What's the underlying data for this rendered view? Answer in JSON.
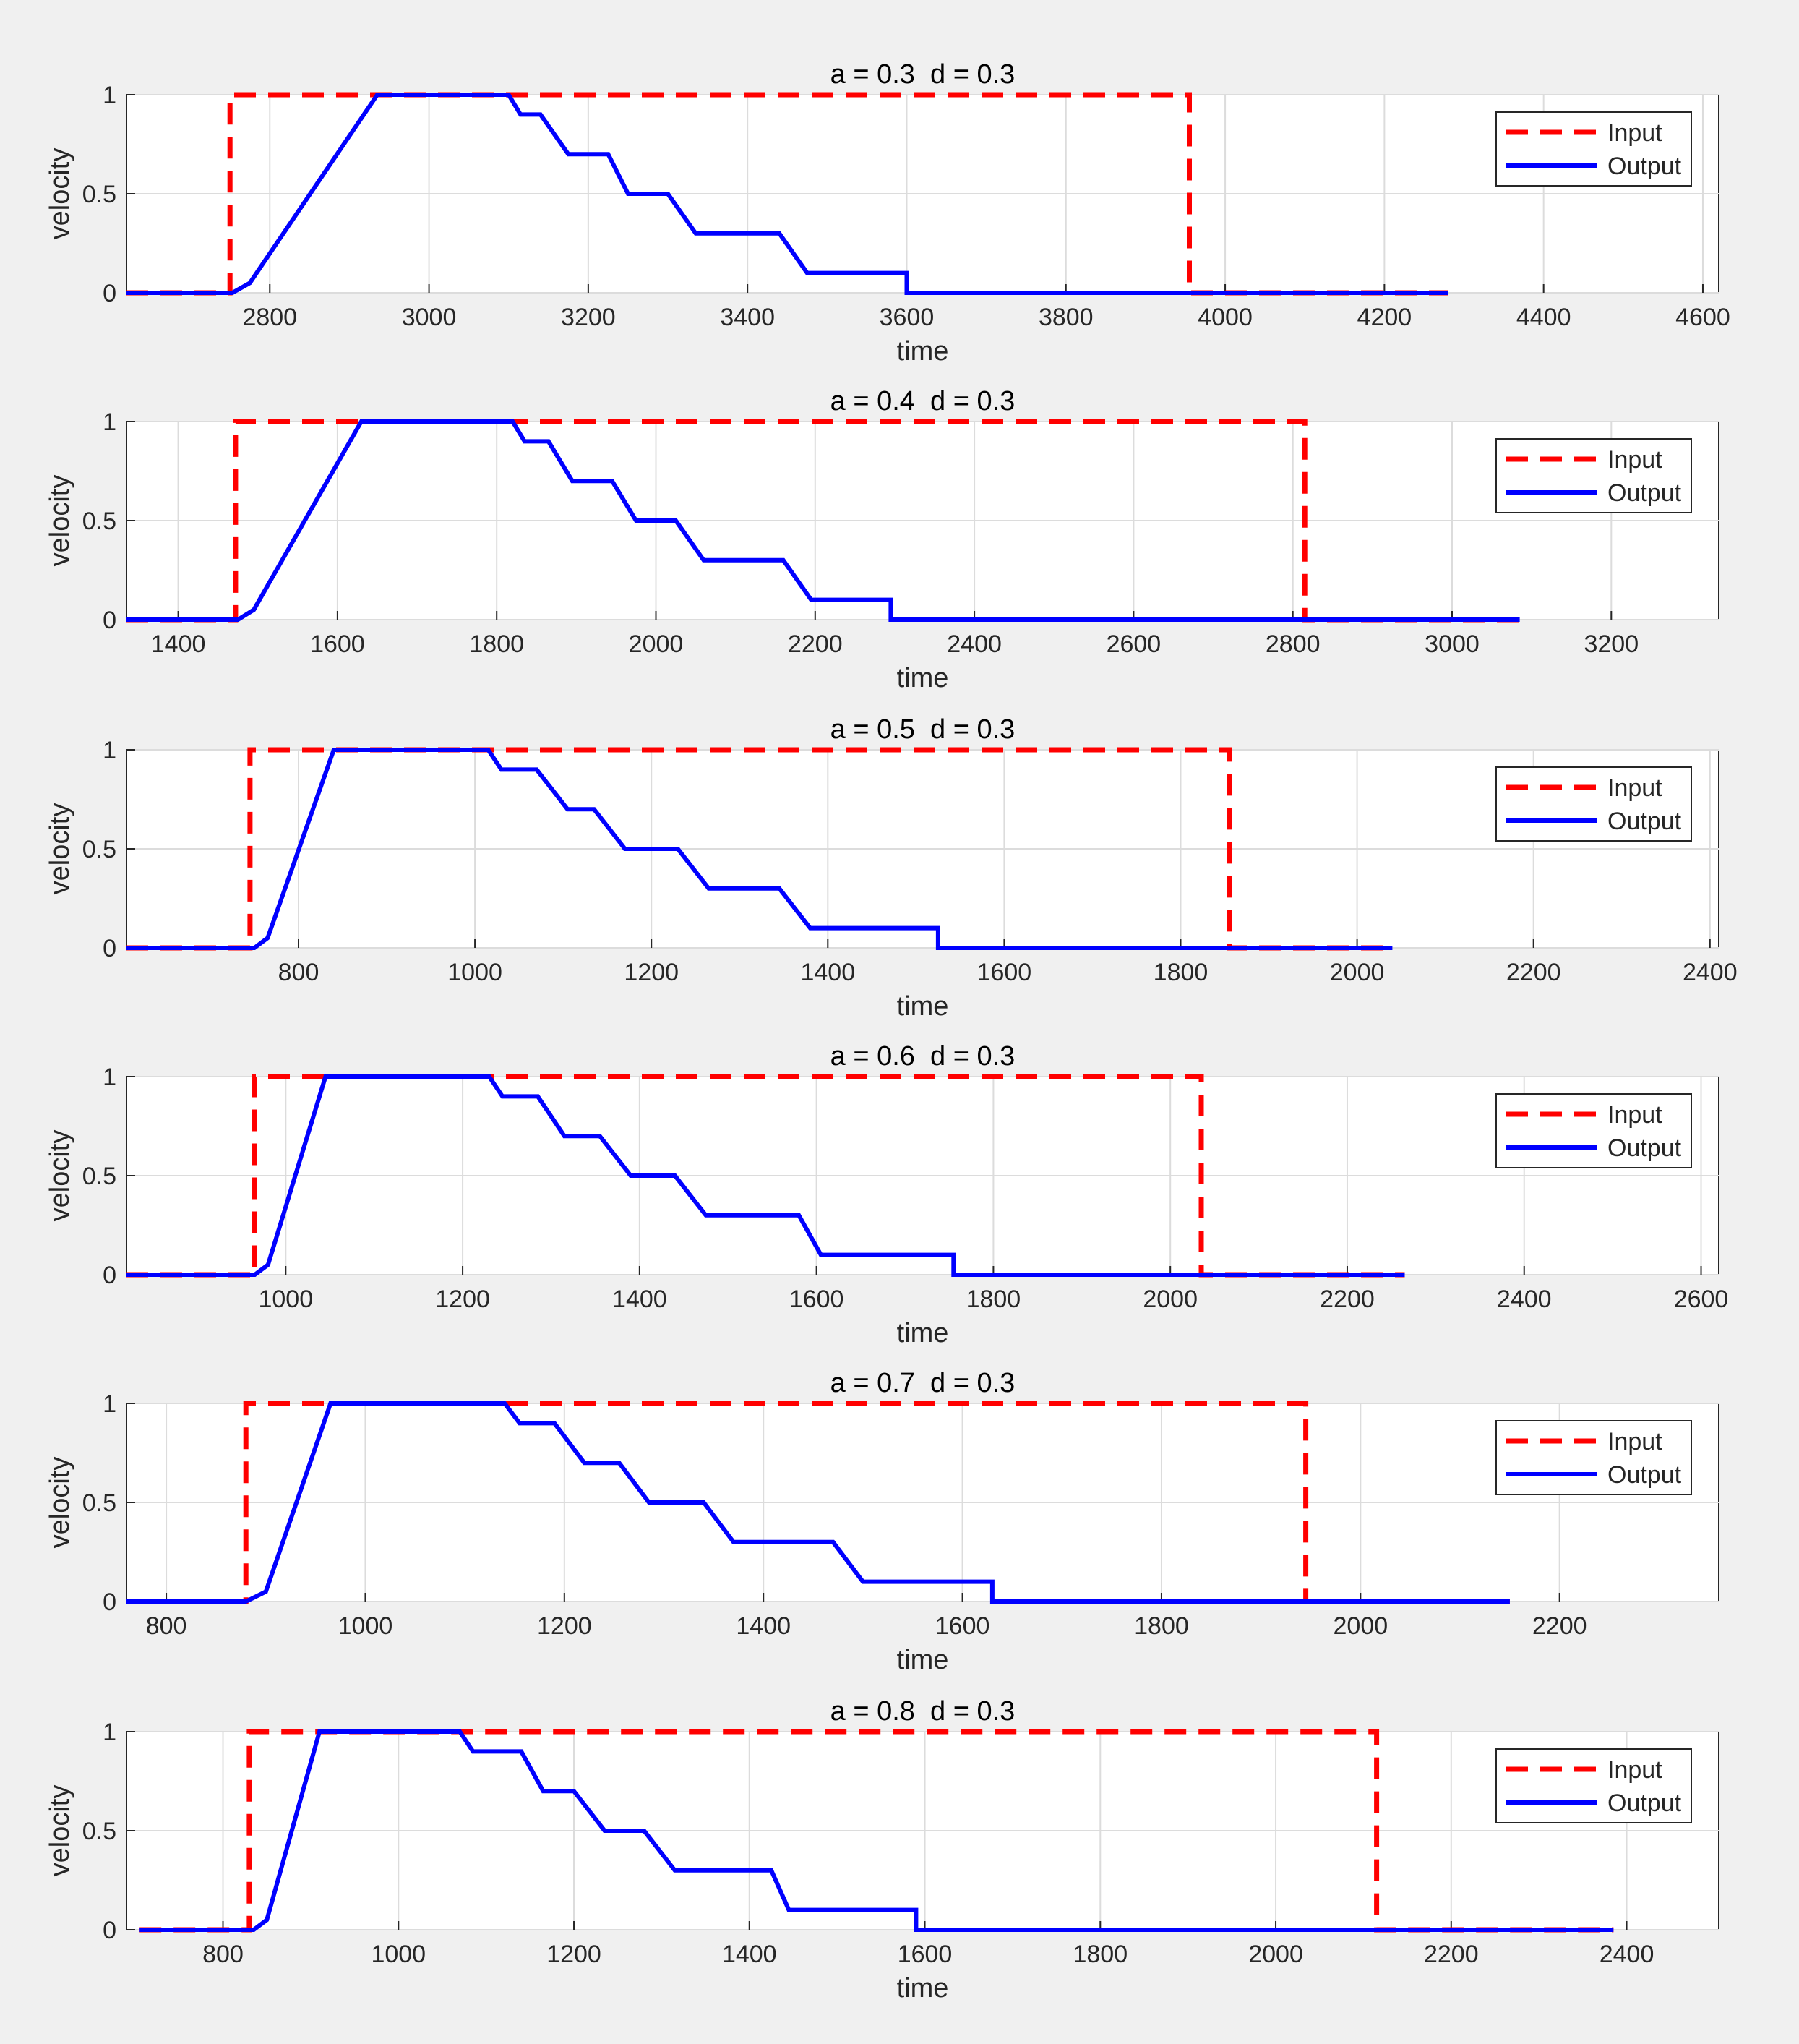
{
  "figure": {
    "background": "#f0f0f0",
    "colors": {
      "input": "#ff0000",
      "output": "#0000ff"
    }
  },
  "chart_data": [
    {
      "type": "line",
      "title": "a = 0.3  d = 0.3",
      "xlabel": "time",
      "ylabel": "velocity",
      "xlim": [
        2620,
        4620
      ],
      "ylim": [
        0,
        1
      ],
      "xticks": [
        2800,
        3000,
        3200,
        3400,
        3600,
        3800,
        4000,
        4200,
        4400,
        4600
      ],
      "yticks": [
        0,
        0.5,
        1
      ],
      "ytick_labels": [
        "0",
        "0.5",
        "1"
      ],
      "grid": true,
      "legend": {
        "position": "top-right",
        "entries": [
          "Input",
          "Output"
        ]
      },
      "series": [
        {
          "name": "Input",
          "style": "dashed",
          "x": [
            2620,
            2750,
            2750,
            3955,
            3955,
            4280
          ],
          "y": [
            0,
            0,
            1,
            1,
            0,
            0
          ]
        },
        {
          "name": "Output",
          "style": "solid",
          "x": [
            2620,
            2753,
            2775,
            2935,
            3100,
            3115,
            3140,
            3175,
            3225,
            3250,
            3300,
            3335,
            3440,
            3475,
            3600,
            3600,
            4280
          ],
          "y": [
            0,
            0,
            0.05,
            1,
            1,
            0.9,
            0.9,
            0.7,
            0.7,
            0.5,
            0.5,
            0.3,
            0.3,
            0.1,
            0.1,
            0,
            0
          ]
        }
      ]
    },
    {
      "type": "line",
      "title": "a = 0.4  d = 0.3",
      "xlabel": "time",
      "ylabel": "velocity",
      "xlim": [
        1335,
        3335
      ],
      "ylim": [
        0,
        1
      ],
      "xticks": [
        1400,
        1600,
        1800,
        2000,
        2200,
        2400,
        2600,
        2800,
        3000,
        3200
      ],
      "yticks": [
        0,
        0.5,
        1
      ],
      "ytick_labels": [
        "0",
        "0.5",
        "1"
      ],
      "grid": true,
      "legend": {
        "position": "top-right",
        "entries": [
          "Input",
          "Output"
        ]
      },
      "series": [
        {
          "name": "Input",
          "style": "dashed",
          "x": [
            1335,
            1472,
            1472,
            2815,
            2815,
            3085
          ],
          "y": [
            0,
            0,
            1,
            1,
            0,
            0
          ]
        },
        {
          "name": "Output",
          "style": "solid",
          "x": [
            1335,
            1475,
            1495,
            1630,
            1820,
            1835,
            1865,
            1895,
            1945,
            1975,
            2025,
            2060,
            2160,
            2195,
            2295,
            2295,
            3085
          ],
          "y": [
            0,
            0,
            0.05,
            1,
            1,
            0.9,
            0.9,
            0.7,
            0.7,
            0.5,
            0.5,
            0.3,
            0.3,
            0.1,
            0.1,
            0,
            0
          ]
        }
      ]
    },
    {
      "type": "line",
      "title": "a = 0.5  d = 0.3",
      "xlabel": "time",
      "ylabel": "velocity",
      "xlim": [
        605,
        2410
      ],
      "ylim": [
        0,
        1
      ],
      "xticks": [
        800,
        1000,
        1200,
        1400,
        1600,
        1800,
        2000,
        2200,
        2400
      ],
      "yticks": [
        0,
        0.5,
        1
      ],
      "ytick_labels": [
        "0",
        "0.5",
        "1"
      ],
      "grid": true,
      "legend": {
        "position": "top-right",
        "entries": [
          "Input",
          "Output"
        ]
      },
      "series": [
        {
          "name": "Input",
          "style": "dashed",
          "x": [
            605,
            745,
            745,
            1855,
            1855,
            2040
          ],
          "y": [
            0,
            0,
            1,
            1,
            0,
            0
          ]
        },
        {
          "name": "Output",
          "style": "solid",
          "x": [
            605,
            750,
            765,
            840,
            1015,
            1030,
            1070,
            1105,
            1135,
            1170,
            1230,
            1265,
            1345,
            1380,
            1525,
            1525,
            2040
          ],
          "y": [
            0,
            0,
            0.05,
            1,
            1,
            0.9,
            0.9,
            0.7,
            0.7,
            0.5,
            0.5,
            0.3,
            0.3,
            0.1,
            0.1,
            0,
            0
          ]
        }
      ]
    },
    {
      "type": "line",
      "title": "a = 0.6  d = 0.3",
      "xlabel": "time",
      "ylabel": "velocity",
      "xlim": [
        820,
        2620
      ],
      "ylim": [
        0,
        1
      ],
      "xticks": [
        1000,
        1200,
        1400,
        1600,
        1800,
        2000,
        2200,
        2400,
        2600
      ],
      "yticks": [
        0,
        0.5,
        1
      ],
      "ytick_labels": [
        "0",
        "0.5",
        "1"
      ],
      "grid": true,
      "legend": {
        "position": "top-right",
        "entries": [
          "Input",
          "Output"
        ]
      },
      "series": [
        {
          "name": "Input",
          "style": "dashed",
          "x": [
            820,
            965,
            965,
            2035,
            2035,
            2265
          ],
          "y": [
            0,
            0,
            1,
            1,
            0,
            0
          ]
        },
        {
          "name": "Output",
          "style": "solid",
          "x": [
            820,
            965,
            980,
            1045,
            1230,
            1245,
            1285,
            1315,
            1355,
            1390,
            1440,
            1475,
            1580,
            1605,
            1755,
            1755,
            2265
          ],
          "y": [
            0,
            0,
            0.05,
            1,
            1,
            0.9,
            0.9,
            0.7,
            0.7,
            0.5,
            0.5,
            0.3,
            0.3,
            0.1,
            0.1,
            0,
            0
          ]
        }
      ]
    },
    {
      "type": "line",
      "title": "a = 0.7  d = 0.3",
      "xlabel": "time",
      "ylabel": "velocity",
      "xlim": [
        760,
        2360
      ],
      "ylim": [
        0,
        1
      ],
      "xticks": [
        800,
        1000,
        1200,
        1400,
        1600,
        1800,
        2000,
        2200
      ],
      "yticks": [
        0,
        0.5,
        1
      ],
      "ytick_labels": [
        "0",
        "0.5",
        "1"
      ],
      "grid": true,
      "legend": {
        "position": "top-right",
        "entries": [
          "Input",
          "Output"
        ]
      },
      "series": [
        {
          "name": "Input",
          "style": "dashed",
          "x": [
            760,
            880,
            880,
            1945,
            1945,
            2150
          ],
          "y": [
            0,
            0,
            1,
            1,
            0,
            0
          ]
        },
        {
          "name": "Output",
          "style": "solid",
          "x": [
            760,
            880,
            900,
            965,
            1140,
            1155,
            1190,
            1220,
            1255,
            1285,
            1340,
            1370,
            1470,
            1500,
            1630,
            1630,
            2150
          ],
          "y": [
            0,
            0,
            0.05,
            1,
            1,
            0.9,
            0.9,
            0.7,
            0.7,
            0.5,
            0.5,
            0.3,
            0.3,
            0.1,
            0.1,
            0,
            0
          ]
        }
      ]
    },
    {
      "type": "line",
      "title": "a = 0.8  d = 0.3",
      "xlabel": "time",
      "ylabel": "velocity",
      "xlim": [
        690,
        2505
      ],
      "ylim": [
        0,
        1
      ],
      "xticks": [
        800,
        1000,
        1200,
        1400,
        1600,
        1800,
        2000,
        2200,
        2400
      ],
      "yticks": [
        0,
        0.5,
        1
      ],
      "ytick_labels": [
        "0",
        "0.5",
        "1"
      ],
      "grid": true,
      "legend": {
        "position": "top-right",
        "entries": [
          "Input",
          "Output"
        ]
      },
      "series": [
        {
          "name": "Input",
          "style": "dashed",
          "x": [
            705,
            830,
            830,
            2115,
            2115,
            2385
          ],
          "y": [
            0,
            0,
            1,
            1,
            0,
            0
          ]
        },
        {
          "name": "Output",
          "style": "solid",
          "x": [
            705,
            835,
            850,
            910,
            1070,
            1085,
            1140,
            1165,
            1200,
            1235,
            1280,
            1315,
            1425,
            1445,
            1590,
            1590,
            2385
          ],
          "y": [
            0,
            0,
            0.05,
            1,
            1,
            0.9,
            0.9,
            0.7,
            0.7,
            0.5,
            0.5,
            0.3,
            0.3,
            0.1,
            0.1,
            0,
            0
          ]
        }
      ]
    }
  ]
}
